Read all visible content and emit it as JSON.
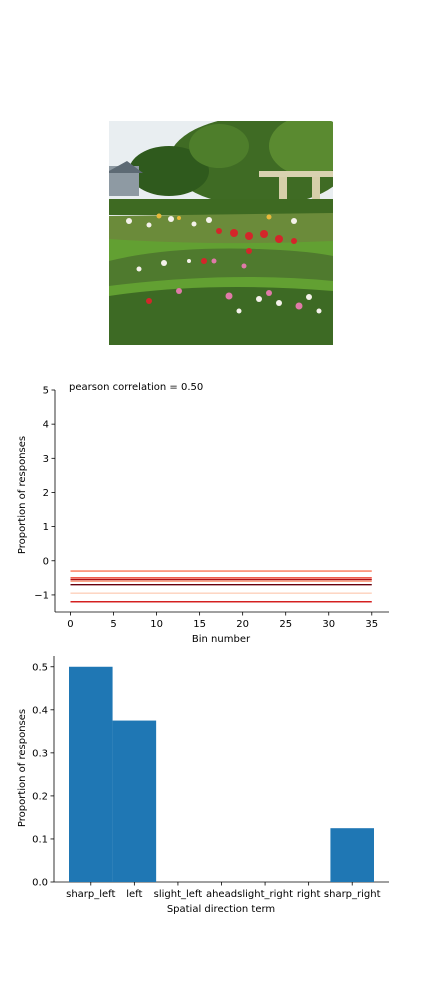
{
  "photo": {
    "subject": "garden-photo",
    "palette": {
      "sky": "#e8eef2",
      "foliage": "#4f7a2e",
      "lawn": "#6aa336",
      "flowers_red": "#c8242a",
      "flowers_pink": "#e07aa8",
      "flowers_white": "#f4f1ea",
      "pergola": "#d9d2b0"
    }
  },
  "chart_data": [
    {
      "type": "line",
      "title": "pearson correlation = 0.50",
      "xlabel": "Bin number",
      "ylabel": "Proportion of responses",
      "xlim": [
        -1.8,
        37
      ],
      "ylim": [
        -1.5,
        5
      ],
      "xticks": [
        0,
        5,
        10,
        15,
        20,
        25,
        30,
        35
      ],
      "yticks": [
        -1,
        0,
        1,
        2,
        3,
        4,
        5
      ],
      "x": [
        0,
        1,
        2,
        3,
        4,
        5,
        6,
        7,
        8,
        9,
        10,
        11,
        12,
        13,
        14,
        15,
        16,
        17,
        18,
        19,
        20,
        21,
        22,
        23,
        24,
        25,
        26,
        27,
        28,
        29,
        30,
        31,
        32,
        33,
        34,
        35
      ],
      "series": [
        {
          "color": "#fdd0bb",
          "values": [
            -0.95,
            -0.95,
            -0.95,
            -0.95,
            -0.95,
            -0.95,
            -0.95,
            -0.95,
            -0.95,
            -0.95,
            -0.95,
            -0.95,
            -0.95,
            -0.95,
            -0.95,
            -0.95,
            -0.95,
            -0.95,
            -0.95,
            -0.95,
            -0.95,
            -0.95,
            -0.95,
            -0.95,
            -0.95,
            -0.95,
            -0.95,
            -0.95,
            -0.95,
            -0.95,
            -0.95,
            -0.95,
            -0.95,
            -0.95,
            -0.95,
            -0.95
          ]
        },
        {
          "color": "#fca588",
          "values": [
            -0.6,
            -0.6,
            -0.6,
            -0.6,
            -0.6,
            -0.6,
            -0.6,
            -0.6,
            -0.6,
            -0.6,
            -0.6,
            -0.6,
            -0.6,
            -0.6,
            -0.6,
            -0.6,
            -0.6,
            -0.6,
            -0.6,
            -0.6,
            -0.6,
            -0.6,
            -0.6,
            -0.6,
            -0.6,
            -0.6,
            -0.6,
            -0.6,
            -0.6,
            -0.6,
            -0.6,
            -0.6,
            -0.6,
            -0.6,
            -0.6,
            -0.6
          ]
        },
        {
          "color": "#fb7555",
          "values": [
            -0.3,
            -0.3,
            -0.3,
            -0.3,
            -0.3,
            -0.3,
            -0.3,
            -0.3,
            -0.3,
            -0.3,
            -0.3,
            -0.3,
            -0.3,
            -0.3,
            -0.3,
            -0.3,
            -0.3,
            -0.3,
            -0.3,
            -0.3,
            -0.3,
            -0.3,
            -0.3,
            -0.3,
            -0.3,
            -0.3,
            -0.3,
            -0.3,
            -0.3,
            -0.3,
            -0.3,
            -0.3,
            -0.3,
            -0.3,
            -0.3,
            -0.3
          ]
        },
        {
          "color": "#f14432",
          "values": [
            -0.5,
            -0.5,
            -0.5,
            -0.5,
            -0.5,
            -0.5,
            -0.5,
            -0.5,
            -0.5,
            -0.5,
            -0.5,
            -0.5,
            -0.5,
            -0.5,
            -0.5,
            -0.5,
            -0.5,
            -0.5,
            -0.5,
            -0.5,
            -0.5,
            -0.5,
            -0.5,
            -0.5,
            -0.5,
            -0.5,
            -0.5,
            -0.5,
            -0.5,
            -0.5,
            -0.5,
            -0.5,
            -0.5,
            -0.5,
            -0.5,
            -0.5
          ]
        },
        {
          "color": "#d42020",
          "values": [
            -1.2,
            -1.2,
            -1.2,
            -1.2,
            -1.2,
            -1.2,
            -1.2,
            -1.2,
            -1.2,
            -1.2,
            -1.2,
            -1.2,
            -1.2,
            -1.2,
            -1.2,
            -1.2,
            -1.2,
            -1.2,
            -1.2,
            -1.2,
            -1.2,
            -1.2,
            -1.2,
            -1.2,
            -1.2,
            -1.2,
            -1.2,
            -1.2,
            -1.2,
            -1.2,
            -1.2,
            -1.2,
            -1.2,
            -1.2,
            -1.2,
            -1.2
          ]
        },
        {
          "color": "#ad1016",
          "values": [
            -0.55,
            -0.55,
            -0.55,
            -0.55,
            -0.55,
            -0.55,
            -0.55,
            -0.55,
            -0.55,
            -0.55,
            -0.55,
            -0.55,
            -0.55,
            -0.55,
            -0.55,
            -0.55,
            -0.55,
            -0.55,
            -0.55,
            -0.55,
            -0.55,
            -0.55,
            -0.55,
            -0.55,
            -0.55,
            -0.55,
            -0.55,
            -0.55,
            -0.55,
            -0.55,
            -0.55,
            -0.55,
            -0.55,
            -0.55,
            -0.55,
            -0.55
          ]
        },
        {
          "color": "#67000d",
          "values": [
            -0.7,
            -0.7,
            -0.7,
            -0.7,
            -0.7,
            -0.7,
            -0.7,
            -0.7,
            -0.7,
            -0.7,
            -0.7,
            -0.7,
            -0.7,
            -0.7,
            -0.7,
            -0.7,
            -0.7,
            -0.7,
            -0.7,
            -0.7,
            -0.7,
            -0.7,
            -0.7,
            -0.7,
            -0.7,
            -0.7,
            -0.7,
            -0.7,
            -0.7,
            -0.7,
            -0.7,
            -0.7,
            -0.7,
            -0.7,
            -0.7,
            -0.7
          ]
        }
      ]
    },
    {
      "type": "bar",
      "xlabel": "Spatial direction term",
      "ylabel": "Proportion of responses",
      "categories": [
        "sharp_left",
        "left",
        "slight_left",
        "ahead",
        "slight_right",
        "right",
        "sharp_right"
      ],
      "values": [
        0.5,
        0.375,
        0,
        0,
        0,
        0,
        0.125
      ],
      "ylim": [
        0,
        0.525
      ],
      "yticks": [
        0.0,
        0.1,
        0.2,
        0.3,
        0.4,
        0.5
      ],
      "color": "#1f77b4"
    }
  ]
}
